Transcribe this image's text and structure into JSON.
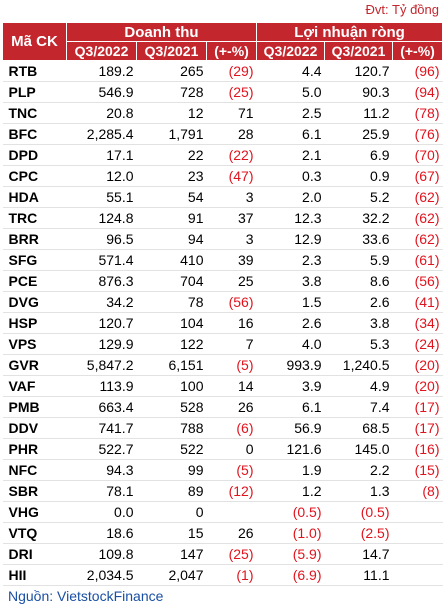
{
  "header": {
    "unit": "Đvt: Tỷ đồng"
  },
  "table": {
    "group_headers": [
      "Mã CK",
      "Doanh thu",
      "Lợi nhuận ròng"
    ],
    "sub_headers": [
      "Q3/2022",
      "Q3/2021",
      "(+-%)",
      "Q3/2022",
      "Q3/2021",
      "(+-%)"
    ],
    "rows": [
      [
        "RTB",
        "189.2",
        "265",
        "(29)",
        "4.4",
        "120.7",
        "(96)"
      ],
      [
        "PLP",
        "546.9",
        "728",
        "(25)",
        "5.0",
        "90.3",
        "(94)"
      ],
      [
        "TNC",
        "20.8",
        "12",
        "71",
        "2.5",
        "11.2",
        "(78)"
      ],
      [
        "BFC",
        "2,285.4",
        "1,791",
        "28",
        "6.1",
        "25.9",
        "(76)"
      ],
      [
        "DPD",
        "17.1",
        "22",
        "(22)",
        "2.1",
        "6.9",
        "(70)"
      ],
      [
        "CPC",
        "12.0",
        "23",
        "(47)",
        "0.3",
        "0.9",
        "(67)"
      ],
      [
        "HDA",
        "55.1",
        "54",
        "3",
        "2.0",
        "5.2",
        "(62)"
      ],
      [
        "TRC",
        "124.8",
        "91",
        "37",
        "12.3",
        "32.2",
        "(62)"
      ],
      [
        "BRR",
        "96.5",
        "94",
        "3",
        "12.9",
        "33.6",
        "(62)"
      ],
      [
        "SFG",
        "571.4",
        "410",
        "39",
        "2.3",
        "5.9",
        "(61)"
      ],
      [
        "PCE",
        "876.3",
        "704",
        "25",
        "3.8",
        "8.6",
        "(56)"
      ],
      [
        "DVG",
        "34.2",
        "78",
        "(56)",
        "1.5",
        "2.6",
        "(41)"
      ],
      [
        "HSP",
        "120.7",
        "104",
        "16",
        "2.6",
        "3.8",
        "(34)"
      ],
      [
        "VPS",
        "129.9",
        "122",
        "7",
        "4.0",
        "5.3",
        "(24)"
      ],
      [
        "GVR",
        "5,847.2",
        "6,151",
        "(5)",
        "993.9",
        "1,240.5",
        "(20)"
      ],
      [
        "VAF",
        "113.9",
        "100",
        "14",
        "3.9",
        "4.9",
        "(20)"
      ],
      [
        "PMB",
        "663.4",
        "528",
        "26",
        "6.1",
        "7.4",
        "(17)"
      ],
      [
        "DDV",
        "741.7",
        "788",
        "(6)",
        "56.9",
        "68.5",
        "(17)"
      ],
      [
        "PHR",
        "522.7",
        "522",
        "0",
        "121.6",
        "145.0",
        "(16)"
      ],
      [
        "NFC",
        "94.3",
        "99",
        "(5)",
        "1.9",
        "2.2",
        "(15)"
      ],
      [
        "SBR",
        "78.1",
        "89",
        "(12)",
        "1.2",
        "1.3",
        "(8)"
      ],
      [
        "VHG",
        "0.0",
        "0",
        null,
        "(0.5)",
        "(0.5)",
        null
      ],
      [
        "VTQ",
        "18.6",
        "15",
        "26",
        "(1.0)",
        "(2.5)",
        null
      ],
      [
        "DRI",
        "109.8",
        "147",
        "(25)",
        "(5.9)",
        "14.7",
        null
      ],
      [
        "HII",
        "2,034.5",
        "2,047",
        "(1)",
        "(6.9)",
        "11.1",
        null
      ]
    ]
  },
  "source": "Nguồn: VietstockFinance"
}
